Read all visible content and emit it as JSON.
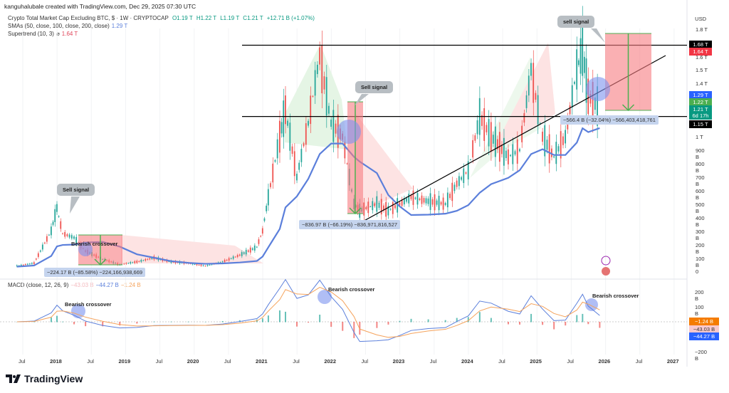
{
  "header": {
    "credit": "kanguhalubale created with TradingView.com, Dec 29, 2025 07:30 UTC"
  },
  "legend": {
    "symbol": "Crypto Total Market Cap Excluding BTC, $ · 1W · CRYPTOCAP",
    "o": "O1.19 T",
    "h": "H1.22 T",
    "l": "L1.19 T",
    "c": "C1.21 T",
    "chg": "+12.71 B (+1.07%)",
    "sma_label": "SMAs (50, close, 100, close, 200, close)",
    "sma_val": "1.29 T",
    "st_label": "Supertrend (10, 3)",
    "st_icon": "⌀",
    "st_val": "1.64 T",
    "macd_label": "MACD (close, 12, 26, 9)",
    "macd_hist": "−43.03 B",
    "macd_line": "−44.27 B",
    "macd_signal": "−1.24 B"
  },
  "colors": {
    "up": "#26a69a",
    "down": "#ef5350",
    "sma": "#5b7fdb",
    "supertrend_up": "#4caf50",
    "supertrend_down": "#e57373",
    "macd": "#5b7fdb",
    "signal": "#f5a35c"
  },
  "price_axis": {
    "unit": "USD",
    "ticks": [
      "1.8 T",
      "1.6 T",
      "1.5 T",
      "1.4 T",
      "1 T",
      "900 B",
      "800 B",
      "700 B",
      "600 B",
      "500 B",
      "400 B",
      "300 B",
      "200 B",
      "100 B",
      "0"
    ],
    "tags": [
      {
        "t": "1.68 T",
        "c": "#000"
      },
      {
        "t": "1.64 T",
        "c": "#f23645"
      },
      {
        "t": "1.29 T",
        "c": "#2962ff"
      },
      {
        "t": "1.22 T",
        "c": "#4caf50"
      },
      {
        "t": "1.21 T",
        "c": "#089981",
        "sub": "6d 17h"
      },
      {
        "t": "1.15 T",
        "c": "#000"
      }
    ]
  },
  "macd_axis": {
    "ticks": [
      "200 B",
      "100 B",
      "−200 B"
    ],
    "tags": [
      {
        "t": "−1.24 B",
        "c": "#f57c00"
      },
      {
        "t": "−43.03 B",
        "c": "#f8c8cc",
        "fg": "#333"
      },
      {
        "t": "−44.27 B",
        "c": "#2962ff"
      }
    ]
  },
  "time_axis": [
    "Jul",
    "2018",
    "Jul",
    "2019",
    "Jul",
    "2020",
    "Jul",
    "2021",
    "Jul",
    "2022",
    "Jul",
    "2023",
    "Jul",
    "2024",
    "Jul",
    "2025",
    "Jul",
    "2026",
    "Jul",
    "2027"
  ],
  "annotations": {
    "sell1": "Sell signal",
    "sell2": "Sell signal",
    "sell3": "sell signal",
    "bear1": "Bearish crossover",
    "bear2": "Bearish crossover",
    "bear3": "Bearish crossover",
    "bear4": "Bearish crossover",
    "m1": "−224.17 B (−85.58%) −224,166,938,669",
    "m2": "−836.97 B (−66.19%) −836,971,816,527",
    "m3": "−566.4 B (−32.04%) −566,403,418,761"
  },
  "brand": "TradingView",
  "chart_data": {
    "type": "candlestick-line",
    "unit": "B USD",
    "ylim": [
      0,
      1850
    ],
    "x": [
      "2017-06",
      "2017-09",
      "2017-12",
      "2018-01",
      "2018-02",
      "2018-04",
      "2018-06",
      "2018-09",
      "2018-12",
      "2019-03",
      "2019-06",
      "2019-09",
      "2019-12",
      "2020-03",
      "2020-06",
      "2020-09",
      "2020-12",
      "2021-01",
      "2021-02",
      "2021-04",
      "2021-05",
      "2021-07",
      "2021-09",
      "2021-11",
      "2022-01",
      "2022-03",
      "2022-05",
      "2022-06",
      "2022-09",
      "2022-11",
      "2023-01",
      "2023-03",
      "2023-06",
      "2023-09",
      "2023-11",
      "2024-01",
      "2024-03",
      "2024-05",
      "2024-08",
      "2024-10",
      "2024-12",
      "2025-02",
      "2025-04",
      "2025-06",
      "2025-08",
      "2025-09",
      "2025-10",
      "2025-12"
    ],
    "close": [
      40,
      60,
      300,
      470,
      280,
      250,
      150,
      90,
      50,
      70,
      100,
      70,
      60,
      40,
      70,
      120,
      180,
      300,
      550,
      1000,
      1200,
      700,
      1100,
      1600,
      1100,
      1000,
      500,
      450,
      500,
      450,
      500,
      550,
      520,
      500,
      650,
      750,
      1150,
      1000,
      850,
      900,
      1500,
      1000,
      850,
      1000,
      1500,
      1650,
      1300,
      1210
    ],
    "levels": {
      "resistance": 1680,
      "support": 1150
    },
    "last": {
      "open": 1190,
      "high": 1220,
      "low": 1190,
      "close": 1210,
      "sma": 1290,
      "supertrend": 1640
    },
    "macd_last": {
      "histogram": -43.03,
      "macd": -44.27,
      "signal": -1.24
    }
  }
}
